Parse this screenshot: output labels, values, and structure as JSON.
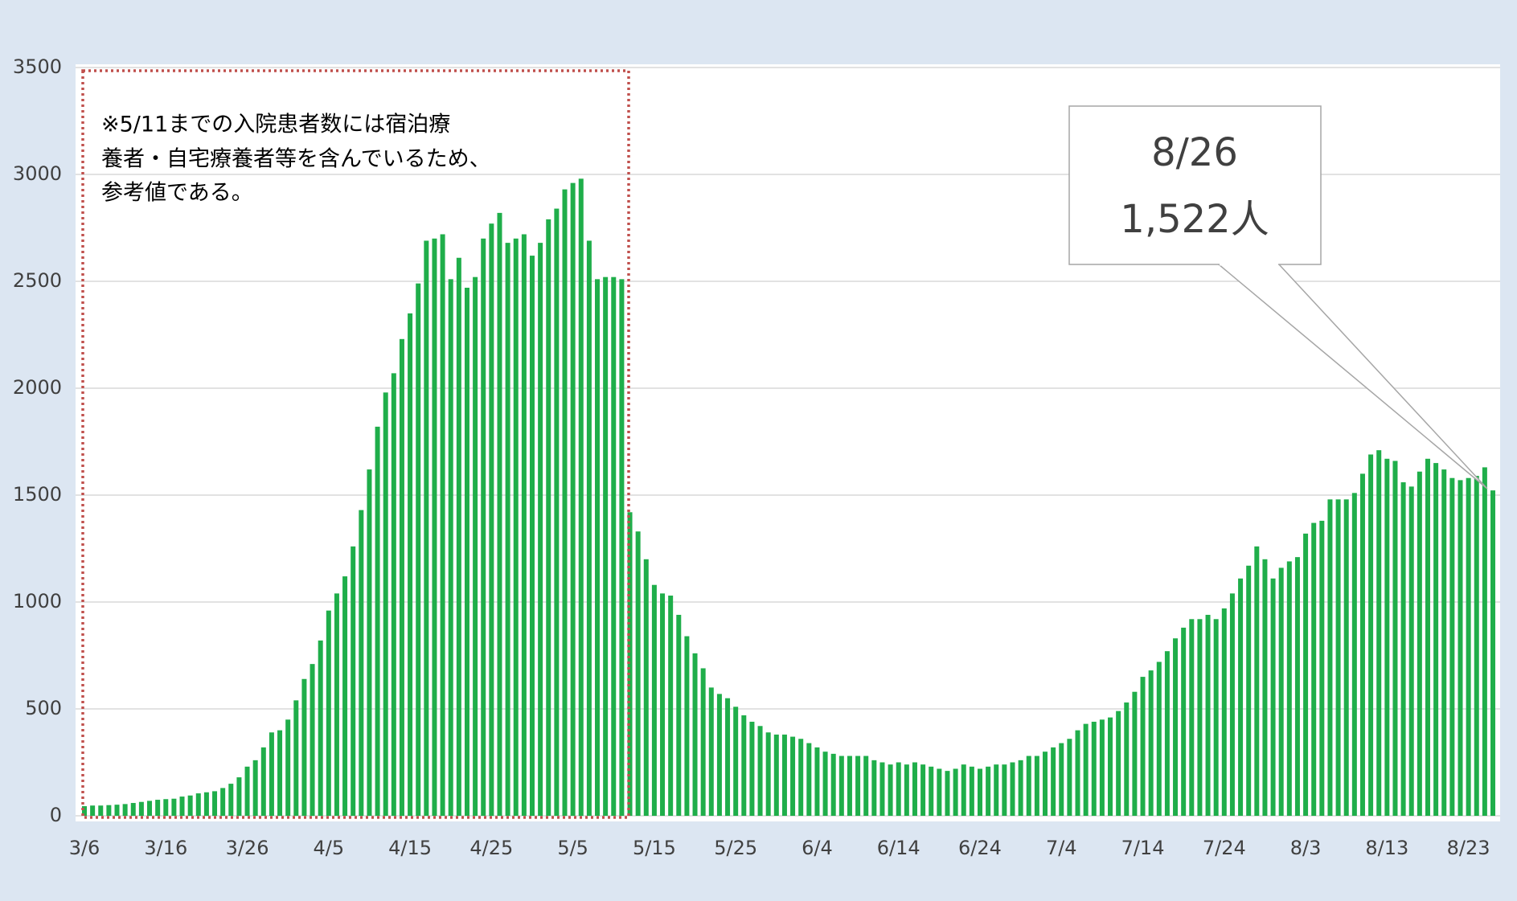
{
  "chart_data": {
    "type": "bar",
    "color": "#1fae4a",
    "grid": true,
    "ylim": [
      0,
      3500
    ],
    "yticks": [
      0,
      500,
      1000,
      1500,
      2000,
      2500,
      3000,
      3500
    ],
    "note": [
      "※5/11までの入院患者数には宿泊療",
      "養者・自宅療養者等を含んでいるため、",
      "参考値である。"
    ],
    "callout": [
      "8/26",
      "1,522人"
    ],
    "categories": [
      "3/6",
      null,
      null,
      null,
      null,
      null,
      null,
      null,
      null,
      null,
      "3/16",
      null,
      null,
      null,
      null,
      null,
      null,
      null,
      null,
      null,
      "3/26",
      null,
      null,
      null,
      null,
      null,
      null,
      null,
      null,
      null,
      "4/5",
      null,
      null,
      null,
      null,
      null,
      null,
      null,
      null,
      null,
      "4/15",
      null,
      null,
      null,
      null,
      null,
      null,
      null,
      null,
      null,
      "4/25",
      null,
      null,
      null,
      null,
      null,
      null,
      null,
      null,
      null,
      "5/5",
      null,
      null,
      null,
      null,
      null,
      null,
      null,
      null,
      null,
      "5/15",
      null,
      null,
      null,
      null,
      null,
      null,
      null,
      null,
      null,
      "5/25",
      null,
      null,
      null,
      null,
      null,
      null,
      null,
      null,
      null,
      "6/4",
      null,
      null,
      null,
      null,
      null,
      null,
      null,
      null,
      null,
      "6/14",
      null,
      null,
      null,
      null,
      null,
      null,
      null,
      null,
      null,
      "6/24",
      null,
      null,
      null,
      null,
      null,
      null,
      null,
      null,
      null,
      "7/4",
      null,
      null,
      null,
      null,
      null,
      null,
      null,
      null,
      null,
      "7/14",
      null,
      null,
      null,
      null,
      null,
      null,
      null,
      null,
      null,
      "7/24",
      null,
      null,
      null,
      null,
      null,
      null,
      null,
      null,
      null,
      "8/3",
      null,
      null,
      null,
      null,
      null,
      null,
      null,
      null,
      null,
      "8/13",
      null,
      null,
      null,
      null,
      null,
      null,
      null,
      null,
      null,
      "8/23",
      null,
      null,
      null
    ],
    "values": [
      45,
      48,
      48,
      50,
      52,
      55,
      60,
      65,
      70,
      75,
      78,
      80,
      90,
      95,
      105,
      110,
      115,
      130,
      150,
      180,
      230,
      260,
      320,
      390,
      400,
      450,
      540,
      640,
      710,
      820,
      960,
      1040,
      1120,
      1260,
      1430,
      1620,
      1820,
      1980,
      2070,
      2230,
      2350,
      2490,
      2690,
      2700,
      2720,
      2510,
      2610,
      2470,
      2520,
      2700,
      2770,
      2820,
      2680,
      2700,
      2720,
      2620,
      2680,
      2790,
      2840,
      2930,
      2960,
      2980,
      2690,
      2510,
      2520,
      2520,
      2510,
      1420,
      1330,
      1200,
      1080,
      1040,
      1030,
      940,
      840,
      760,
      690,
      600,
      570,
      550,
      510,
      470,
      440,
      420,
      390,
      380,
      380,
      370,
      360,
      340,
      320,
      300,
      290,
      280,
      280,
      280,
      280,
      260,
      250,
      240,
      250,
      240,
      250,
      240,
      230,
      220,
      210,
      220,
      240,
      230,
      220,
      230,
      240,
      240,
      250,
      260,
      280,
      280,
      300,
      320,
      340,
      360,
      400,
      430,
      440,
      450,
      460,
      490,
      530,
      580,
      650,
      680,
      720,
      770,
      830,
      880,
      920,
      920,
      940,
      920,
      970,
      1040,
      1110,
      1170,
      1260,
      1200,
      1110,
      1160,
      1190,
      1210,
      1320,
      1370,
      1380,
      1480,
      1480,
      1480,
      1510,
      1600,
      1690,
      1710,
      1670,
      1660,
      1560,
      1540,
      1610,
      1670,
      1650,
      1620,
      1580,
      1570,
      1580,
      1590,
      1630,
      1522
    ]
  }
}
